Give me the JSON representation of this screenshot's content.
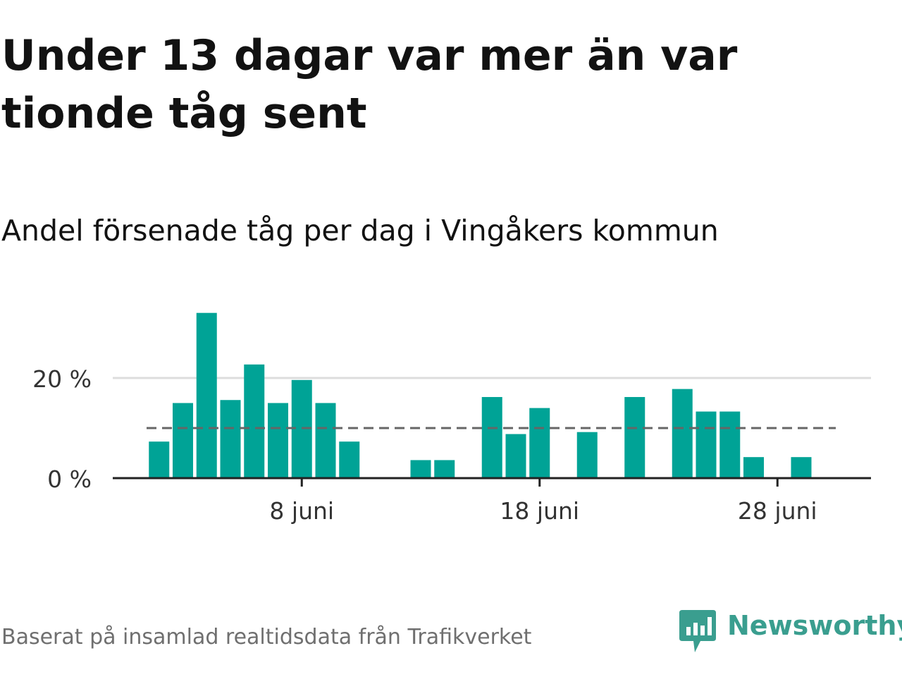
{
  "title": "Under 13 dagar var mer än var tionde tåg sent",
  "subtitle": "Andel försenade tåg per dag i Vingåkers kommun",
  "source": "Baserat på insamlad realtidsdata från Trafikverket",
  "brand": {
    "name": "Newsworthy",
    "icon": "newsworthy-logo-icon",
    "color": "#3a9e8f"
  },
  "colors": {
    "bar": "#00a396",
    "average_line": "#666666",
    "grid": "#dddddd",
    "axis": "#222222"
  },
  "chart_data": {
    "type": "bar",
    "title": "Andel försenade tåg per dag i Vingåkers kommun",
    "xlabel": "",
    "ylabel": "",
    "x_unit": "day of June",
    "categories": [
      1,
      2,
      3,
      4,
      5,
      6,
      7,
      8,
      9,
      10,
      11,
      12,
      13,
      14,
      15,
      16,
      17,
      18,
      19,
      20,
      21,
      22,
      23,
      24,
      25,
      26,
      27,
      28,
      29,
      30
    ],
    "values": [
      0,
      7.3,
      15,
      33,
      15.6,
      22.7,
      15,
      19.6,
      15,
      7.3,
      0,
      0,
      3.6,
      3.6,
      0,
      16.2,
      8.8,
      14,
      0,
      9.2,
      0,
      16.2,
      0,
      17.8,
      13.3,
      13.3,
      4.2,
      0,
      4.2,
      0
    ],
    "reference_line": {
      "value": 10,
      "style": "dashed"
    },
    "ylim": [
      0,
      35
    ],
    "y_ticks": [
      {
        "value": 0,
        "label": "0 %"
      },
      {
        "value": 20,
        "label": "20 %"
      }
    ],
    "x_ticks": [
      {
        "day": 8,
        "label": "8 juni"
      },
      {
        "day": 18,
        "label": "18 juni"
      },
      {
        "day": 28,
        "label": "28 juni"
      }
    ],
    "grid": true,
    "legend": "none"
  }
}
